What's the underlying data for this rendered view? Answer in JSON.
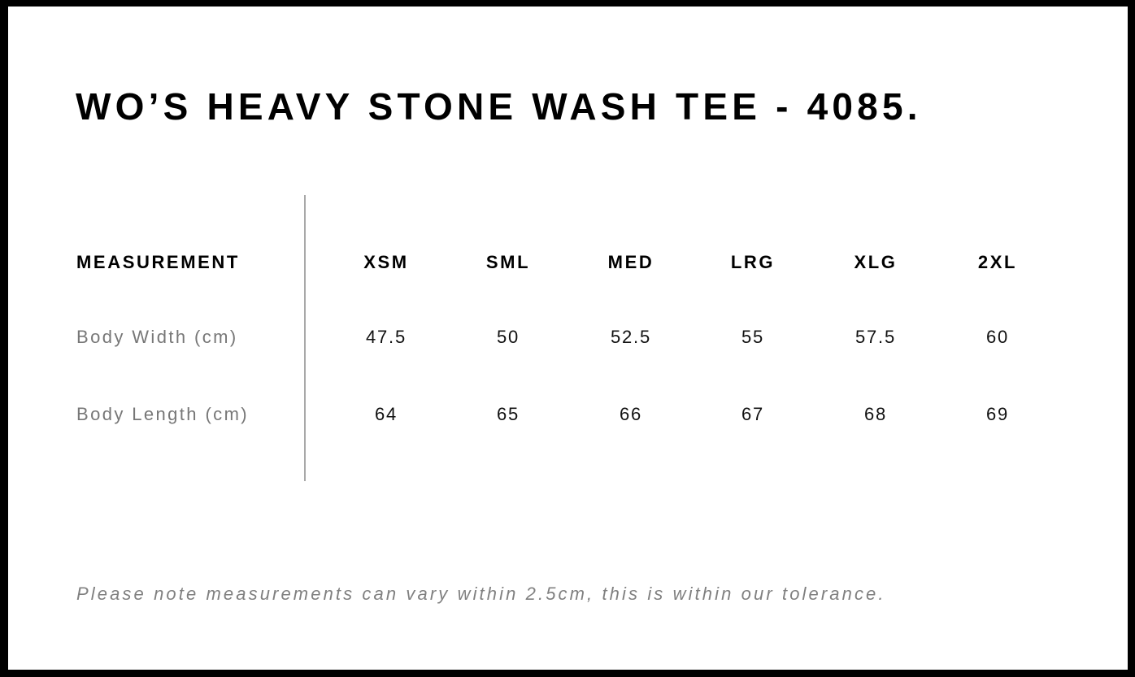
{
  "title": "WO’S HEAVY STONE WASH TEE - 4085.",
  "table": {
    "header_label": "MEASUREMENT",
    "sizes": [
      "XSM",
      "SML",
      "MED",
      "LRG",
      "XLG",
      "2XL"
    ],
    "rows": [
      {
        "label": "Body Width (cm)",
        "values": [
          "47.5",
          "50",
          "52.5",
          "55",
          "57.5",
          "60"
        ]
      },
      {
        "label": "Body Length (cm)",
        "values": [
          "64",
          "65",
          "66",
          "67",
          "68",
          "69"
        ]
      }
    ]
  },
  "note": "Please note measurements can vary within 2.5cm, this is within our tolerance.",
  "colors": {
    "border": "#000000",
    "label_gray": "#777777",
    "divider": "#a8a8a8"
  }
}
